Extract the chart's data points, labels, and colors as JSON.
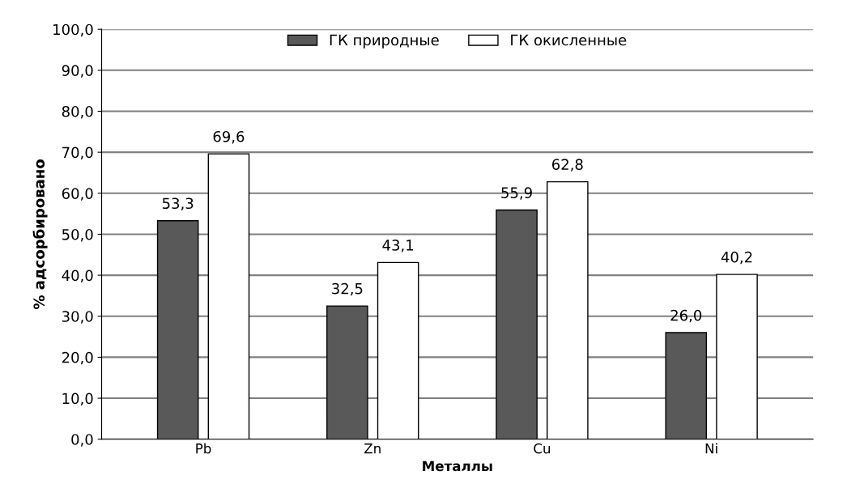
{
  "chart_data": {
    "type": "bar",
    "xlabel": "Металлы",
    "ylabel": "% адсорбировано",
    "categories": [
      "Pb",
      "Zn",
      "Cu",
      "Ni"
    ],
    "series": [
      {
        "name": "ГК природные",
        "color": "#595959",
        "values": [
          53.3,
          32.5,
          55.9,
          26.0
        ],
        "value_labels": [
          "53,3",
          "32,5",
          "55,9",
          "26,0"
        ]
      },
      {
        "name": "ГК окисленные",
        "color": "#ffffff",
        "values": [
          69.6,
          43.1,
          62.8,
          40.2
        ],
        "value_labels": [
          "69,6",
          "43,1",
          "62,8",
          "40,2"
        ]
      }
    ],
    "ylim": [
      0,
      100
    ],
    "yticks": [
      {
        "value": 0,
        "label": "0,0"
      },
      {
        "value": 10,
        "label": "10,0"
      },
      {
        "value": 20,
        "label": "20,0"
      },
      {
        "value": 30,
        "label": "30,0"
      },
      {
        "value": 40,
        "label": "40,0"
      },
      {
        "value": 50,
        "label": "50,0"
      },
      {
        "value": 60,
        "label": "60,0"
      },
      {
        "value": 70,
        "label": "70,0"
      },
      {
        "value": 80,
        "label": "80,0"
      },
      {
        "value": 90,
        "label": "90,0"
      },
      {
        "value": 100,
        "label": "100,0"
      }
    ],
    "grid": "y",
    "legend": "top"
  }
}
